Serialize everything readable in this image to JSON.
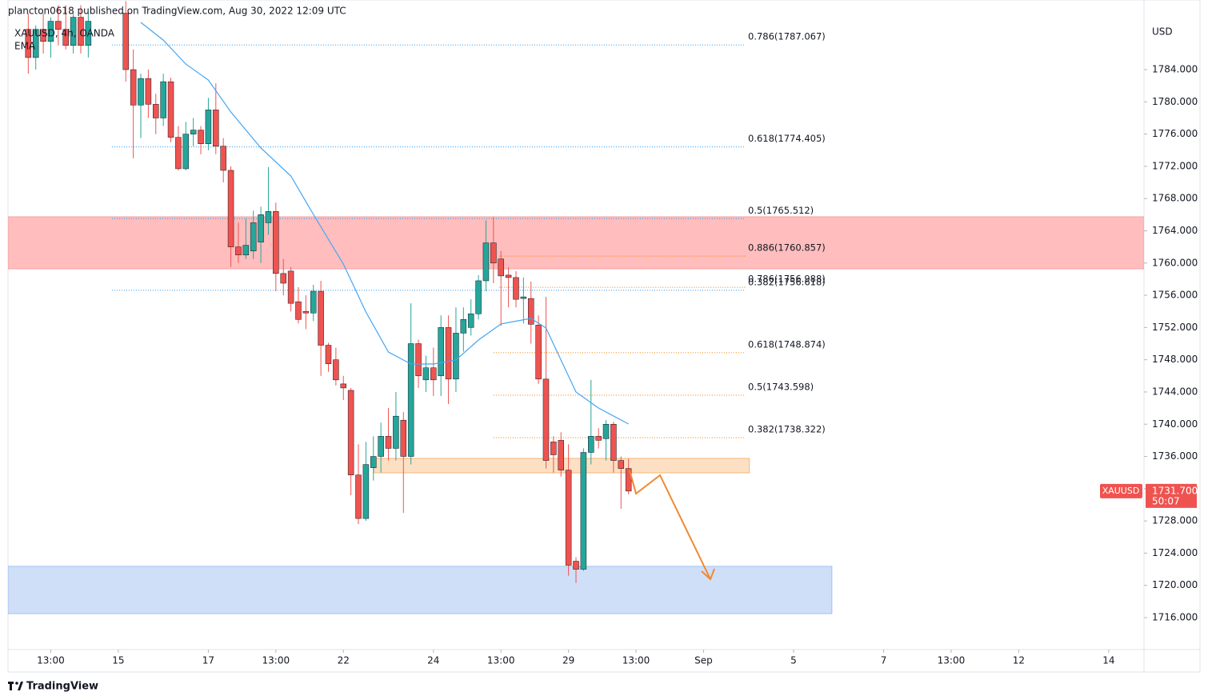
{
  "header": {
    "published": "plancton0618 published on TradingView.com, Aug 30, 2022 12:09 UTC",
    "legend": "XAUUSD, 4h, OANDA",
    "unit": "USD"
  },
  "footer": {
    "brand": "TradingView"
  },
  "price_label": {
    "symbol": "XAUUSD",
    "price": {
      "value": 1731.7,
      "label": "1731.700"
    },
    "countdown": "50:07",
    "color": "#ef5350"
  },
  "chart_data": {
    "type": "candlestick",
    "xlim": [
      -14.7,
      136.7
    ],
    "ylim": [
      1712.03,
      1792.64
    ],
    "xticks": [
      {
        "value": -9,
        "label": "13:00"
      },
      {
        "value": 0,
        "label": "15"
      },
      {
        "value": 12,
        "label": "17"
      },
      {
        "value": 21,
        "label": "13:00"
      },
      {
        "value": 30,
        "label": "22"
      },
      {
        "value": 42,
        "label": "24"
      },
      {
        "value": 51,
        "label": "13:00"
      },
      {
        "value": 60,
        "label": "29"
      },
      {
        "value": 69,
        "label": "13:00"
      },
      {
        "value": 78,
        "label": "Sep"
      },
      {
        "value": 90,
        "label": "5"
      },
      {
        "value": 102,
        "label": "7"
      },
      {
        "value": 111,
        "label": "13:00"
      },
      {
        "value": 120,
        "label": "12"
      },
      {
        "value": 132,
        "label": "14"
      }
    ],
    "yticks": [
      {
        "value": 1716,
        "label": "1716.000"
      },
      {
        "value": 1720,
        "label": "1720.000"
      },
      {
        "value": 1724,
        "label": "1724.000"
      },
      {
        "value": 1728,
        "label": "1728.000"
      },
      {
        "value": 1732,
        "label": "1732.000"
      },
      {
        "value": 1736,
        "label": "1736.000"
      },
      {
        "value": 1740,
        "label": "1740.000"
      },
      {
        "value": 1744,
        "label": "1744.000"
      },
      {
        "value": 1748,
        "label": "1748.000"
      },
      {
        "value": 1752,
        "label": "1752.000"
      },
      {
        "value": 1756,
        "label": "1756.000"
      },
      {
        "value": 1760,
        "label": "1760.000"
      },
      {
        "value": 1764,
        "label": "1764.000"
      },
      {
        "value": 1768,
        "label": "1768.000"
      },
      {
        "value": 1772,
        "label": "1772.000"
      },
      {
        "value": 1776,
        "label": "1776.000"
      },
      {
        "value": 1780,
        "label": "1780.000"
      },
      {
        "value": 1784,
        "label": "1784.000"
      }
    ],
    "up_color": "#26a69a",
    "down_color": "#ef5350",
    "candles": {
      "x": [
        -12,
        -11,
        -10,
        -9,
        -8,
        -7,
        -6,
        -5,
        -4,
        1,
        2,
        3,
        4,
        5,
        6,
        7,
        8,
        9,
        10,
        11,
        12,
        13,
        14,
        15,
        16,
        17,
        18,
        19,
        20,
        21,
        22,
        23,
        24,
        25,
        26,
        27,
        28,
        29,
        30,
        31,
        32,
        33,
        34,
        35,
        36,
        37,
        38,
        39,
        40,
        41,
        42,
        43,
        44,
        45,
        46,
        47,
        48,
        49,
        50,
        51,
        52,
        53,
        54,
        55,
        56,
        57,
        58,
        59,
        60,
        61,
        62,
        63,
        64,
        65,
        66,
        67,
        68
      ],
      "open": [
        1789,
        1785.5,
        1789,
        1787.5,
        1790,
        1789,
        1787,
        1790.5,
        1787,
        1791,
        1784,
        1779.6,
        1782.9,
        1779.7,
        1778,
        1782.5,
        1775.6,
        1771.7,
        1776,
        1776.5,
        1774.8,
        1779,
        1774.5,
        1771.5,
        1762,
        1761,
        1761.5,
        1762.6,
        1765,
        1766.4,
        1758.7,
        1759,
        1755.2,
        1754,
        1753.8,
        1756.5,
        1749.8,
        1748,
        1745,
        1744.2,
        1733.7,
        1728.3,
        1734.6,
        1736,
        1738.5,
        1737,
        1740.5,
        1736,
        1750,
        1745.5,
        1747,
        1746,
        1752,
        1745.6,
        1751.3,
        1752,
        1753.7,
        1757.8,
        1762.5,
        1760.5,
        1758.5,
        1758.2,
        1755.6,
        1755.6,
        1752.3,
        1745.6,
        1737.8,
        1738,
        1734.3,
        1723,
        1722,
        1736.5,
        1738.5,
        1738.2,
        1740,
        1735.5,
        1734.5
      ],
      "high": [
        1791,
        1789.5,
        1791,
        1790.5,
        1792,
        1792,
        1791,
        1792,
        1791,
        1792.5,
        1786.5,
        1783.5,
        1784,
        1781,
        1783.5,
        1783,
        1777,
        1777.5,
        1778,
        1777,
        1780.5,
        1782.3,
        1775.5,
        1772,
        1765,
        1765.5,
        1766.5,
        1767,
        1771.9,
        1767.5,
        1760.5,
        1759.5,
        1757,
        1756,
        1757.3,
        1757.8,
        1750.1,
        1749.5,
        1746,
        1744.5,
        1737.5,
        1737.8,
        1738.5,
        1740.2,
        1742,
        1744,
        1741.5,
        1755,
        1750.5,
        1748.5,
        1749.5,
        1753.5,
        1753.5,
        1754.5,
        1754.5,
        1755.5,
        1758.5,
        1765.3,
        1765.7,
        1761.5,
        1759.5,
        1759,
        1758.2,
        1757.7,
        1753.5,
        1755.8,
        1738.5,
        1739,
        1737.5,
        1723.5,
        1737,
        1745.5,
        1739.5,
        1740.5,
        1740.3,
        1736,
        1735.7
      ],
      "low": [
        1783.5,
        1784,
        1786,
        1785.5,
        1787,
        1786.5,
        1786,
        1786,
        1785.5,
        1782.5,
        1773,
        1775.5,
        1778,
        1776,
        1777,
        1775,
        1771.5,
        1771.5,
        1774.5,
        1773.5,
        1774,
        1773.5,
        1770,
        1759.5,
        1760,
        1760.5,
        1760.5,
        1760,
        1763.5,
        1756.5,
        1756,
        1754,
        1752.5,
        1751.8,
        1752.8,
        1746,
        1746.5,
        1744.8,
        1743,
        1731.2,
        1727.6,
        1728,
        1733,
        1734,
        1735.5,
        1735.5,
        1729,
        1735,
        1744.5,
        1744,
        1743.5,
        1743.5,
        1742.5,
        1744,
        1749,
        1751,
        1753,
        1756.5,
        1757.5,
        1752.2,
        1754.5,
        1754.5,
        1752.5,
        1750,
        1745,
        1734.5,
        1734,
        1733.5,
        1721.2,
        1720.3,
        1721.8,
        1735,
        1737,
        1735.5,
        1734,
        1729.5,
        1731.3
      ],
      "close": [
        1785.5,
        1789,
        1787.5,
        1790,
        1789,
        1787,
        1790.5,
        1787,
        1790,
        1784,
        1779.6,
        1782.9,
        1779.7,
        1778,
        1782.5,
        1775.6,
        1771.7,
        1776,
        1776.5,
        1774.8,
        1779,
        1774.5,
        1771.5,
        1762,
        1761,
        1762.2,
        1765,
        1766,
        1766.4,
        1758.7,
        1757.5,
        1755,
        1753,
        1753.8,
        1756.5,
        1749.8,
        1747.5,
        1745.5,
        1744.5,
        1733.7,
        1728.3,
        1735,
        1736,
        1738.5,
        1737,
        1741,
        1736,
        1750,
        1746,
        1747,
        1745.5,
        1752,
        1745.6,
        1751.3,
        1753,
        1753.7,
        1757.8,
        1762.5,
        1760,
        1758.4,
        1758.2,
        1755.5,
        1755.8,
        1752.4,
        1745.6,
        1735.5,
        1736.2,
        1734.3,
        1722.5,
        1722,
        1736.5,
        1738.5,
        1738,
        1740,
        1735.5,
        1734.5,
        1731.7
      ]
    },
    "ema": {
      "name": "EMA",
      "color": "#42a5f5",
      "x": [
        3,
        6,
        9,
        12,
        15,
        19,
        23,
        26,
        30,
        33,
        36,
        39,
        42,
        45,
        48,
        51,
        55,
        57,
        59,
        61,
        64,
        68
      ],
      "values": [
        1789.86,
        1787.67,
        1784.69,
        1782.71,
        1778.74,
        1774.27,
        1770.8,
        1766.03,
        1759.88,
        1753.92,
        1748.96,
        1747.47,
        1747.47,
        1747.97,
        1750.45,
        1752.44,
        1753.13,
        1751.94,
        1747.97,
        1744.0,
        1742.01,
        1740.03
      ]
    },
    "levels": [
      {
        "label": "0.786(1787.067)",
        "value": 1787.067,
        "color": "#2196f3",
        "from": -0.85,
        "to": 83.6
      },
      {
        "label": "0.618(1774.405)",
        "value": 1774.405,
        "color": "#2196f3",
        "from": -0.85,
        "to": 83.6
      },
      {
        "label": "0.5(1765.512)",
        "value": 1765.512,
        "color": "#2196f3",
        "from": -0.85,
        "to": 83.6
      },
      {
        "label": "0.382(1756.618)",
        "value": 1756.618,
        "color": "#2196f3",
        "from": -0.85,
        "to": 83.6
      },
      {
        "label": "0.886(1760.857)",
        "value": 1760.857,
        "color": "#f57c00",
        "from": 50.8,
        "to": 83.6
      },
      {
        "label": "0.786(1756.988)",
        "value": 1756.988,
        "color": "#f57c00",
        "from": 50.8,
        "to": 83.6
      },
      {
        "label": "0.618(1748.874)",
        "value": 1748.874,
        "color": "#f57c00",
        "from": 50,
        "to": 83.6
      },
      {
        "label": "0.5(1743.598)",
        "value": 1743.598,
        "color": "#f57c00",
        "from": 50,
        "to": 83.6
      },
      {
        "label": "0.382(1738.322)",
        "value": 1738.322,
        "color": "#f57c00",
        "from": 50,
        "to": 83.6
      }
    ],
    "zones": [
      {
        "top": 1765.74,
        "bottom": 1759.28,
        "from": -14.7,
        "to": 136.7,
        "color": "#ffbdbd",
        "border": "#f5a3a3"
      },
      {
        "top": 1735.76,
        "bottom": 1733.97,
        "from": 34.1,
        "to": 84.1,
        "color": "#fde0c4",
        "border": "#f5b77c"
      },
      {
        "top": 1722.36,
        "bottom": 1716.5,
        "from": -14.7,
        "to": 95.1,
        "color": "#cfdff8",
        "border": "#9fc2f0"
      }
    ]
  }
}
